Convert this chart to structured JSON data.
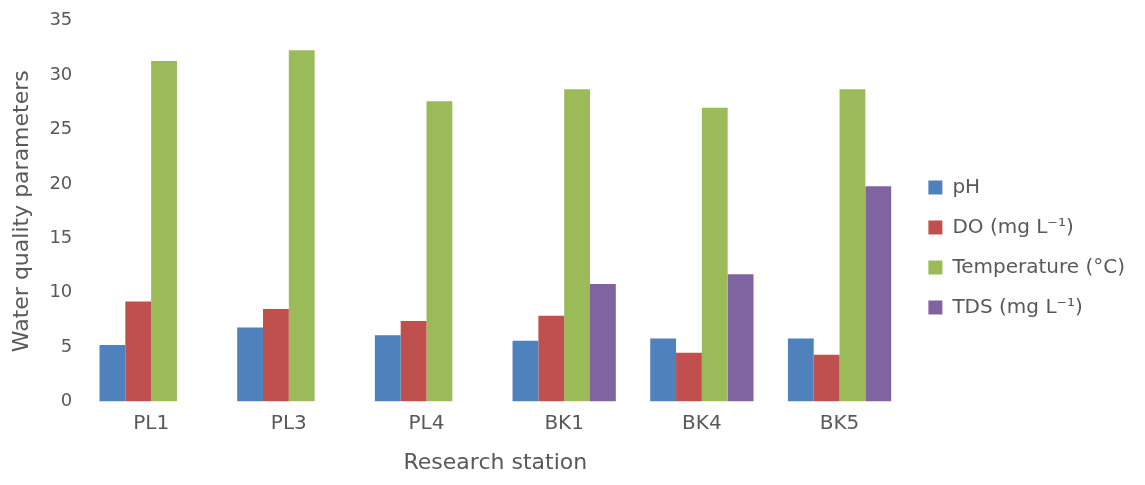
{
  "chart_data": {
    "type": "bar",
    "xlabel": "Research station",
    "ylabel": "Water quality parameters",
    "categories": [
      "PL1",
      "PL3",
      "PL4",
      "BK1",
      "BK4",
      "BK5"
    ],
    "series": [
      {
        "name": "pH",
        "color": "#4f81bd",
        "values": [
          5.2,
          6.8,
          6.1,
          5.6,
          5.8,
          5.8
        ]
      },
      {
        "name": "DO (mg L⁻¹)",
        "color": "#c0504d",
        "values": [
          9.2,
          8.5,
          7.4,
          7.9,
          4.5,
          4.3
        ]
      },
      {
        "name": "Temperature (°C)",
        "color": "#9bbb59",
        "values": [
          31.3,
          32.3,
          27.6,
          28.7,
          27.0,
          28.7
        ]
      },
      {
        "name": "TDS (mg L⁻¹)",
        "color": "#8064a2",
        "values": [
          0,
          0,
          0,
          10.8,
          11.7,
          19.8
        ]
      }
    ],
    "ylim": [
      0,
      35
    ],
    "yticks": [
      0,
      5,
      10,
      15,
      20,
      25,
      30,
      35
    ],
    "grid": false,
    "legend": "right"
  }
}
